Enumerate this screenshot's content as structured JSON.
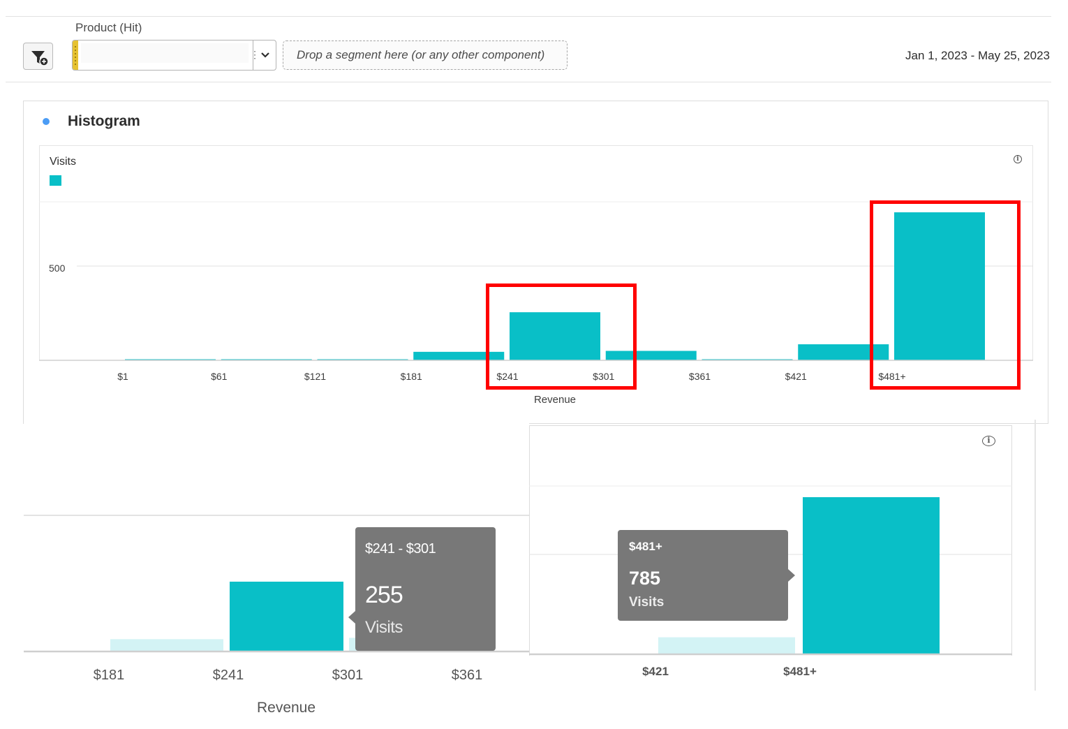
{
  "toolbar": {
    "product_label": "Product (Hit)",
    "drop_zone_text": "Drop a segment here (or any other component)",
    "date_range": "Jan 1, 2023 - May 25, 2023",
    "filter_icon": "filter-add-icon",
    "dropdown_icon": "chevron-down-icon"
  },
  "panel": {
    "title": "Histogram",
    "legend_label": "Visits",
    "accent_color": "#09bfc7",
    "info_icon": "info-icon",
    "x_axis_title": "Revenue",
    "y_tick_500": "500"
  },
  "chart_data": {
    "type": "bar",
    "title": "Histogram",
    "xlabel": "Revenue",
    "ylabel": "",
    "series": [
      {
        "name": "Visits",
        "color": "#09bfc7",
        "values": [
          5,
          5,
          5,
          45,
          255,
          50,
          3,
          85,
          785
        ]
      }
    ],
    "categories": [
      "$1",
      "$61",
      "$121",
      "$181",
      "$241",
      "$301",
      "$361",
      "$421",
      "$481+"
    ],
    "bin_edge_labels": [
      "$1",
      "$61",
      "$121",
      "$181",
      "$241",
      "$301",
      "$361",
      "$421",
      "$481+"
    ],
    "y_ticks": [
      500
    ],
    "ylim": [
      0,
      850
    ],
    "grid": true
  },
  "zoom_left": {
    "tick_labels": [
      "$181",
      "$241",
      "$301",
      "$361"
    ],
    "x_axis_title": "Revenue",
    "tooltip": {
      "range": "$241 - $301",
      "value": "255",
      "metric": "Visits"
    }
  },
  "zoom_right": {
    "tick_labels": [
      "$421",
      "$481+"
    ],
    "info_icon": "info-icon",
    "tooltip": {
      "range": "$481+",
      "value": "785",
      "metric": "Visits"
    }
  }
}
